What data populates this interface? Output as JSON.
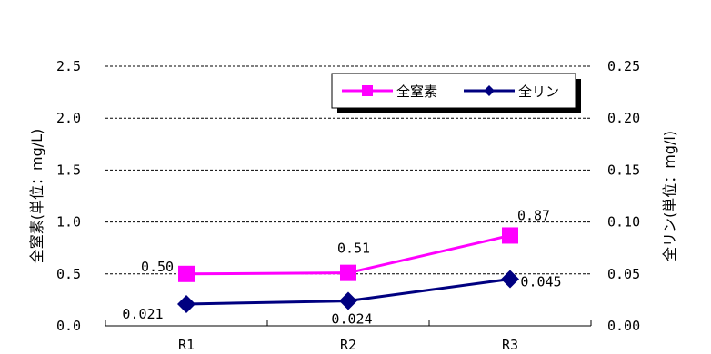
{
  "chart_data": {
    "type": "line",
    "categories": [
      "R1",
      "R2",
      "R3"
    ],
    "y_left": {
      "label": "全窒素(単位：mg/L)",
      "lim": [
        0,
        2.5
      ],
      "ticks": [
        "0.0",
        "0.5",
        "1.0",
        "1.5",
        "2.0",
        "2.5"
      ]
    },
    "y_right": {
      "label": "全リン(単位：mg/l)",
      "lim": [
        0,
        0.25
      ],
      "ticks": [
        "0.00",
        "0.05",
        "0.10",
        "0.15",
        "0.20",
        "0.25"
      ]
    },
    "grid": true,
    "legend_position": "top-right",
    "series": [
      {
        "name": "全窒素",
        "axis": "left",
        "values": [
          0.5,
          0.51,
          0.87
        ],
        "labels": [
          "0.50",
          "0.51",
          "0.87"
        ],
        "color": "#ff00ff",
        "marker": "square"
      },
      {
        "name": "全リン",
        "axis": "right",
        "values": [
          0.021,
          0.024,
          0.045
        ],
        "labels": [
          "0.021",
          "0.024",
          "0.045"
        ],
        "color": "#000080",
        "marker": "diamond"
      }
    ]
  }
}
